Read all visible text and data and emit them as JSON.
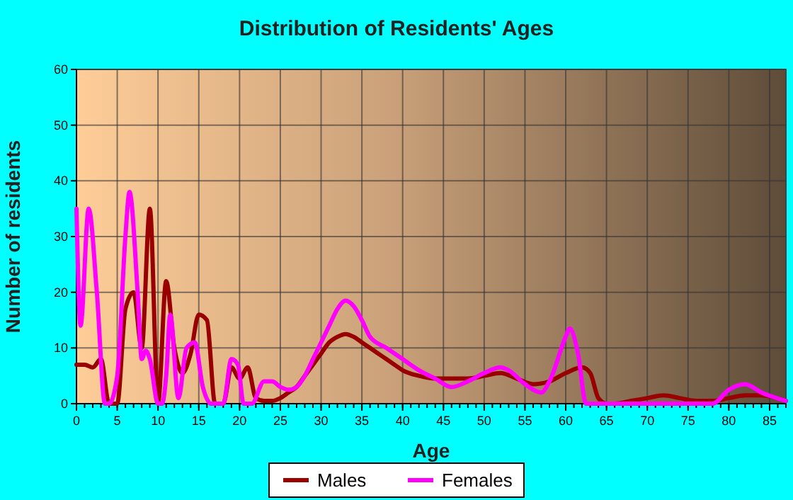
{
  "chart_data": {
    "type": "line",
    "title": "Distribution of Residents' Ages",
    "xlabel": "Age",
    "ylabel": "Number of residents",
    "xlim": [
      0,
      87
    ],
    "xticks": [
      0,
      5,
      10,
      15,
      20,
      25,
      30,
      35,
      40,
      45,
      50,
      55,
      60,
      65,
      70,
      75,
      80,
      85
    ],
    "ylim": [
      0,
      60
    ],
    "yticks": [
      0,
      10,
      20,
      30,
      40,
      50,
      60
    ],
    "grid": true,
    "legend": "bottom",
    "marker": "none",
    "line_style": "solid",
    "series": [
      {
        "name": "Males",
        "color": "#990000",
        "x": [
          0,
          1,
          2,
          3,
          4,
          5,
          6,
          7,
          8,
          9,
          10,
          11,
          12,
          13,
          14,
          15,
          16,
          17,
          18,
          19,
          20,
          21,
          22,
          23,
          24,
          25,
          26,
          27,
          28,
          29,
          30,
          31,
          32,
          33,
          34,
          35,
          36,
          37,
          38,
          39,
          40,
          42,
          44,
          46,
          48,
          50,
          52,
          54,
          56,
          58,
          60,
          62,
          63,
          64,
          65,
          66,
          68,
          70,
          72,
          74,
          76,
          78,
          80,
          82,
          84,
          87
        ],
        "values": [
          7,
          7,
          6.5,
          8,
          0,
          0,
          17,
          20,
          10,
          35,
          0,
          22,
          10,
          5.5,
          9,
          16,
          15,
          0,
          0,
          6.5,
          4.5,
          6.5,
          1,
          0.5,
          0.5,
          1,
          2,
          3,
          5,
          7,
          9,
          11,
          12,
          12.5,
          12,
          11,
          10,
          9,
          8,
          7,
          6,
          5,
          4.5,
          4.5,
          4.5,
          5,
          5.5,
          4.5,
          3.5,
          4,
          5.5,
          6.5,
          5.5,
          1,
          0,
          0,
          0.5,
          1,
          1.5,
          1,
          0.5,
          0.5,
          1,
          1.5,
          1.5,
          0.5
        ]
      },
      {
        "name": "Females",
        "color": "#ff00ff",
        "x": [
          0,
          0.5,
          1.5,
          2.5,
          3.5,
          4,
          5,
          6,
          6.5,
          7.5,
          8,
          8.5,
          9,
          10,
          10.5,
          11,
          11.5,
          12.5,
          13.5,
          14.5,
          15.5,
          16.5,
          18,
          19,
          19.8,
          20.5,
          21.5,
          23,
          24,
          25,
          26,
          27,
          28,
          29,
          30,
          31,
          32,
          33,
          34,
          35,
          36,
          38,
          40,
          42,
          44,
          46,
          48,
          50,
          52,
          53,
          55,
          57,
          58,
          60,
          60.5,
          61.5,
          62.5,
          64,
          66,
          68,
          70,
          72,
          74,
          76,
          78,
          80,
          82,
          84,
          87
        ],
        "values": [
          35,
          14,
          35,
          20,
          0,
          0,
          5,
          30,
          38,
          20,
          8,
          9.5,
          8,
          0,
          0,
          5,
          16,
          1,
          10,
          11,
          3,
          0,
          0,
          8,
          7,
          0,
          0,
          4,
          4,
          3,
          2.5,
          3,
          5,
          8,
          11,
          14,
          17,
          18.5,
          17.5,
          15,
          12,
          10,
          8,
          6,
          4.5,
          3,
          4,
          5.5,
          6.5,
          6,
          3.5,
          2,
          4,
          12,
          13.5,
          9,
          0,
          0,
          0,
          0,
          0,
          0,
          0,
          0,
          0,
          2.5,
          3.5,
          2,
          0.5
        ]
      }
    ]
  }
}
